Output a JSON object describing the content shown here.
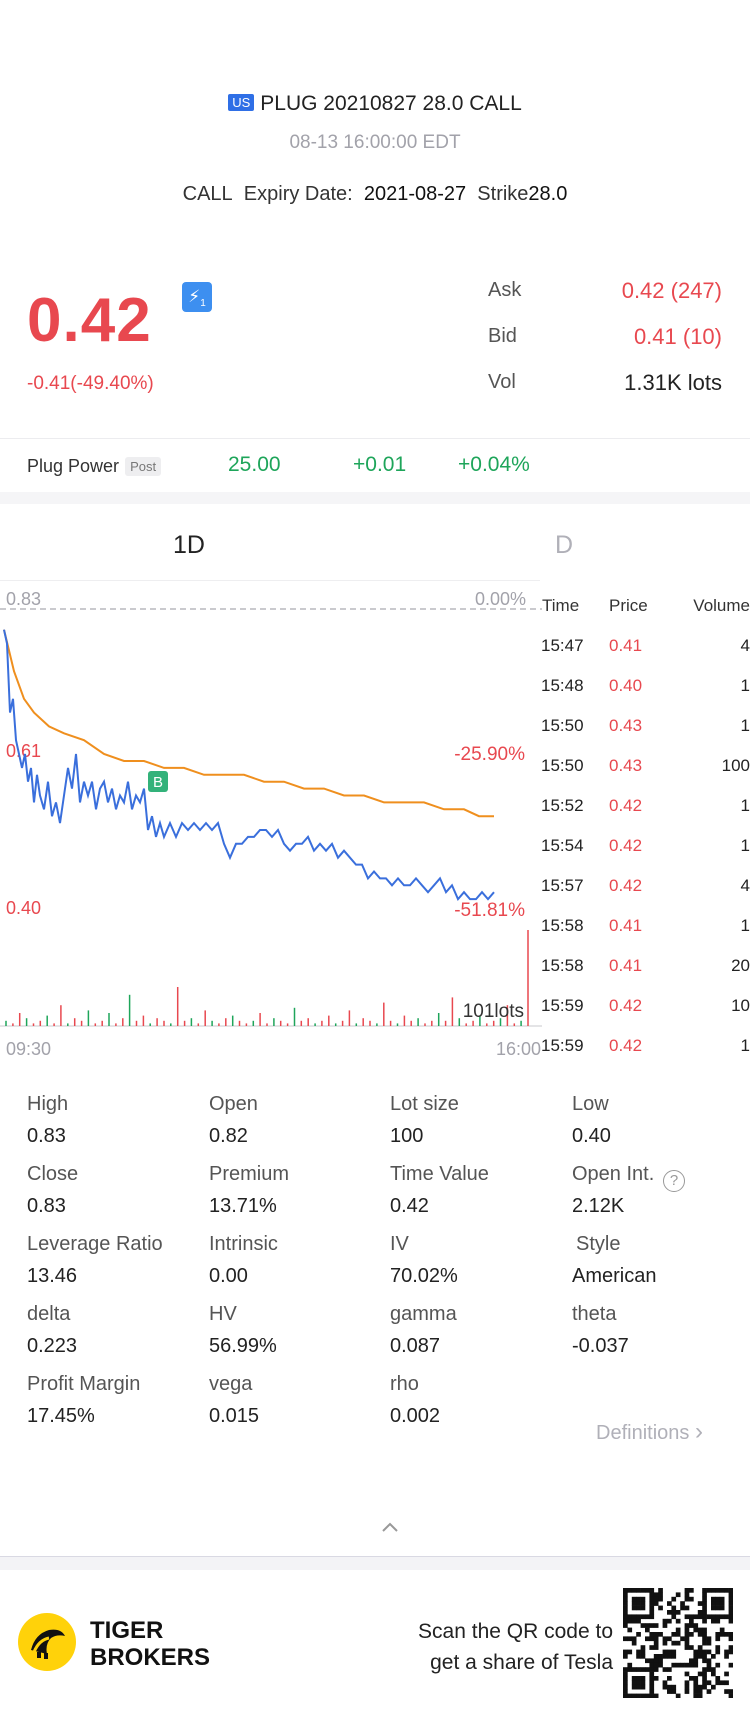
{
  "header": {
    "market_badge": "US",
    "title": "PLUG 20210827 28.0 CALL",
    "timestamp": "08-13 16:00:00 EDT",
    "type": "CALL",
    "expiry_label": "Expiry Date:",
    "expiry_value": "2021-08-27",
    "strike_label": "Strike",
    "strike_value": "28.0"
  },
  "quote": {
    "price": "0.42",
    "badge": "1",
    "change": "-0.41(-49.40%)",
    "ask_label": "Ask",
    "ask_value": "0.42 (247)",
    "bid_label": "Bid",
    "bid_value": "0.41 (10)",
    "vol_label": "Vol",
    "vol_value": "1.31K lots"
  },
  "underlying": {
    "name": "Plug Power",
    "session": "Post",
    "price": "25.00",
    "change": "+0.01",
    "change_pct": "+0.04%"
  },
  "tabs": [
    "1D",
    "D"
  ],
  "chart_data": {
    "type": "line",
    "y_top_label": "0.83",
    "y_top_pct": "0.00%",
    "y_mid_label": "0.61",
    "y_mid_pct": "-25.90%",
    "y_bottom_label": "0.40",
    "y_bottom_pct": "-51.81%",
    "x_start": "09:30",
    "x_end": "16:00",
    "volume_label": "101lots",
    "marker": "B",
    "ylim": [
      0.4,
      0.83
    ],
    "series": [
      {
        "name": "Price",
        "color": "#3a6fdc",
        "points": [
          [
            0,
            0.8
          ],
          [
            3,
            0.78
          ],
          [
            6,
            0.68
          ],
          [
            9,
            0.7
          ],
          [
            12,
            0.64
          ],
          [
            15,
            0.62
          ],
          [
            18,
            0.6
          ],
          [
            21,
            0.62
          ],
          [
            24,
            0.58
          ],
          [
            27,
            0.6
          ],
          [
            30,
            0.55
          ],
          [
            33,
            0.59
          ],
          [
            36,
            0.56
          ],
          [
            40,
            0.54
          ],
          [
            44,
            0.58
          ],
          [
            48,
            0.53
          ],
          [
            52,
            0.55
          ],
          [
            56,
            0.52
          ],
          [
            60,
            0.56
          ],
          [
            64,
            0.6
          ],
          [
            68,
            0.57
          ],
          [
            72,
            0.62
          ],
          [
            76,
            0.55
          ],
          [
            80,
            0.58
          ],
          [
            84,
            0.56
          ],
          [
            88,
            0.58
          ],
          [
            92,
            0.54
          ],
          [
            96,
            0.57
          ],
          [
            100,
            0.58
          ],
          [
            104,
            0.55
          ],
          [
            108,
            0.57
          ],
          [
            112,
            0.54
          ],
          [
            116,
            0.56
          ],
          [
            120,
            0.55
          ],
          [
            124,
            0.58
          ],
          [
            128,
            0.54
          ],
          [
            132,
            0.56
          ],
          [
            136,
            0.55
          ],
          [
            140,
            0.57
          ],
          [
            144,
            0.51
          ],
          [
            148,
            0.53
          ],
          [
            152,
            0.5
          ],
          [
            156,
            0.52
          ],
          [
            160,
            0.5
          ],
          [
            166,
            0.52
          ],
          [
            172,
            0.5
          ],
          [
            178,
            0.52
          ],
          [
            184,
            0.51
          ],
          [
            190,
            0.52
          ],
          [
            196,
            0.51
          ],
          [
            202,
            0.52
          ],
          [
            208,
            0.51
          ],
          [
            214,
            0.52
          ],
          [
            220,
            0.49
          ],
          [
            226,
            0.47
          ],
          [
            232,
            0.49
          ],
          [
            238,
            0.49
          ],
          [
            244,
            0.5
          ],
          [
            250,
            0.5
          ],
          [
            256,
            0.51
          ],
          [
            262,
            0.51
          ],
          [
            268,
            0.5
          ],
          [
            274,
            0.51
          ],
          [
            280,
            0.49
          ],
          [
            286,
            0.48
          ],
          [
            292,
            0.49
          ],
          [
            298,
            0.49
          ],
          [
            304,
            0.5
          ],
          [
            310,
            0.48
          ],
          [
            316,
            0.49
          ],
          [
            322,
            0.48
          ],
          [
            328,
            0.49
          ],
          [
            334,
            0.47
          ],
          [
            340,
            0.48
          ],
          [
            346,
            0.47
          ],
          [
            352,
            0.46
          ],
          [
            358,
            0.46
          ],
          [
            364,
            0.44
          ],
          [
            370,
            0.45
          ],
          [
            376,
            0.44
          ],
          [
            382,
            0.44
          ],
          [
            388,
            0.43
          ],
          [
            394,
            0.44
          ],
          [
            400,
            0.43
          ],
          [
            406,
            0.43
          ],
          [
            412,
            0.44
          ],
          [
            418,
            0.43
          ],
          [
            424,
            0.42
          ],
          [
            430,
            0.43
          ],
          [
            436,
            0.44
          ],
          [
            442,
            0.42
          ],
          [
            448,
            0.43
          ],
          [
            454,
            0.41
          ],
          [
            460,
            0.42
          ],
          [
            466,
            0.41
          ],
          [
            472,
            0.41
          ],
          [
            478,
            0.42
          ],
          [
            484,
            0.41
          ],
          [
            490,
            0.42
          ]
        ]
      },
      {
        "name": "Average",
        "color": "#ef8f1e",
        "points": [
          [
            0,
            0.8
          ],
          [
            10,
            0.74
          ],
          [
            20,
            0.7
          ],
          [
            30,
            0.68
          ],
          [
            45,
            0.66
          ],
          [
            60,
            0.65
          ],
          [
            80,
            0.64
          ],
          [
            100,
            0.62
          ],
          [
            120,
            0.61
          ],
          [
            140,
            0.61
          ],
          [
            160,
            0.6
          ],
          [
            180,
            0.6
          ],
          [
            200,
            0.59
          ],
          [
            220,
            0.59
          ],
          [
            240,
            0.59
          ],
          [
            260,
            0.58
          ],
          [
            280,
            0.58
          ],
          [
            300,
            0.57
          ],
          [
            320,
            0.57
          ],
          [
            340,
            0.56
          ],
          [
            360,
            0.56
          ],
          [
            380,
            0.55
          ],
          [
            400,
            0.55
          ],
          [
            420,
            0.55
          ],
          [
            440,
            0.54
          ],
          [
            460,
            0.54
          ],
          [
            475,
            0.53
          ],
          [
            490,
            0.53
          ]
        ]
      }
    ],
    "volume": [
      2,
      1,
      5,
      3,
      1,
      2,
      4,
      1,
      8,
      1,
      3,
      2,
      6,
      1,
      2,
      5,
      1,
      3,
      12,
      2,
      4,
      1,
      3,
      2,
      1,
      15,
      2,
      3,
      1,
      6,
      2,
      1,
      3,
      4,
      2,
      1,
      2,
      5,
      1,
      3,
      2,
      1,
      7,
      2,
      3,
      1,
      2,
      4,
      1,
      2,
      6,
      1,
      3,
      2,
      1,
      9,
      2,
      1,
      4,
      2,
      3,
      1,
      2,
      5,
      2,
      11,
      3,
      1,
      2,
      4,
      1,
      2,
      3,
      8,
      1,
      2,
      101
    ]
  },
  "ticks": {
    "headers": {
      "time": "Time",
      "price": "Price",
      "volume": "Volume"
    },
    "rows": [
      {
        "time": "15:47",
        "price": "0.41",
        "volume": "4"
      },
      {
        "time": "15:48",
        "price": "0.40",
        "volume": "1"
      },
      {
        "time": "15:50",
        "price": "0.43",
        "volume": "1"
      },
      {
        "time": "15:50",
        "price": "0.43",
        "volume": "100"
      },
      {
        "time": "15:52",
        "price": "0.42",
        "volume": "1"
      },
      {
        "time": "15:54",
        "price": "0.42",
        "volume": "1"
      },
      {
        "time": "15:57",
        "price": "0.42",
        "volume": "4"
      },
      {
        "time": "15:58",
        "price": "0.41",
        "volume": "1"
      },
      {
        "time": "15:58",
        "price": "0.41",
        "volume": "20"
      },
      {
        "time": "15:59",
        "price": "0.42",
        "volume": "10"
      },
      {
        "time": "15:59",
        "price": "0.42",
        "volume": "1"
      }
    ]
  },
  "stats": [
    {
      "label": "High",
      "value": "0.83"
    },
    {
      "label": "Open",
      "value": "0.82"
    },
    {
      "label": "Lot size",
      "value": "100"
    },
    {
      "label": "Low",
      "value": "0.40"
    },
    {
      "label": "Close",
      "value": "0.83"
    },
    {
      "label": "Premium",
      "value": "13.71%"
    },
    {
      "label": "Time Value",
      "value": "0.42"
    },
    {
      "label": "Open Int.",
      "value": "2.12K"
    },
    {
      "label": "Leverage Ratio",
      "value": "13.46"
    },
    {
      "label": "Intrinsic",
      "value": "0.00"
    },
    {
      "label": "IV",
      "value": "70.02%"
    },
    {
      "label": "Style",
      "value": "American"
    },
    {
      "label": "delta",
      "value": "0.223"
    },
    {
      "label": "HV",
      "value": "56.99%"
    },
    {
      "label": "gamma",
      "value": "0.087"
    },
    {
      "label": "theta",
      "value": "-0.037"
    },
    {
      "label": "Profit Margin",
      "value": "17.45%"
    },
    {
      "label": "vega",
      "value": "0.015"
    },
    {
      "label": "rho",
      "value": "0.002"
    }
  ],
  "definitions_link": "Definitions",
  "footer": {
    "brand_line1": "TIGER",
    "brand_line2": "BROKERS",
    "scan_line1": "Scan the QR code to",
    "scan_line2": "get a share of Tesla"
  }
}
